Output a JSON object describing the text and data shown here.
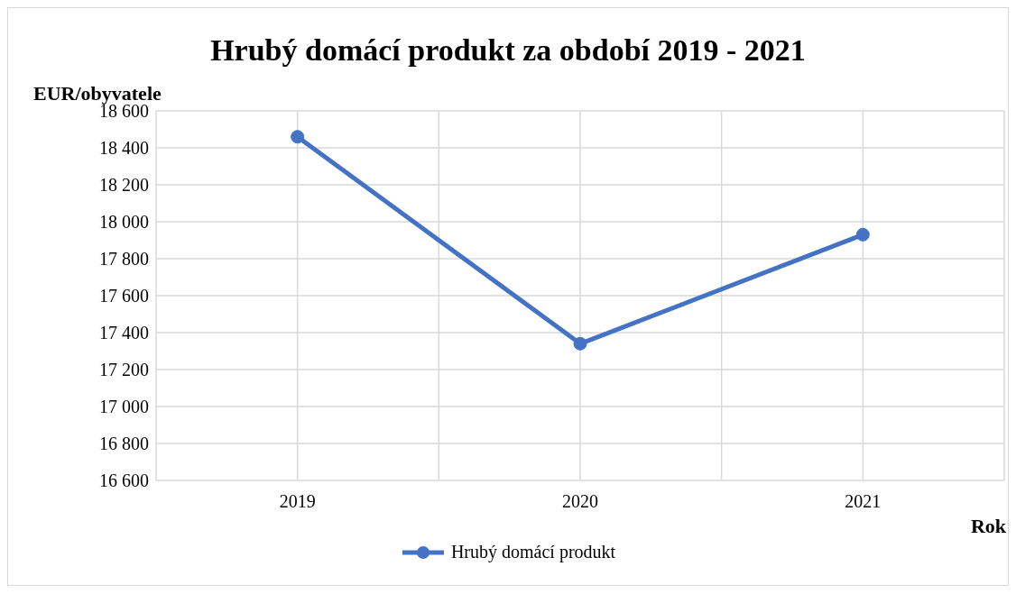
{
  "chart_data": {
    "type": "line",
    "title": "Hrubý domácí produkt za období 2019 - 2021",
    "ylabel": "EUR/obyvatele",
    "xlabel": "Rok",
    "categories": [
      "2019",
      "2020",
      "2021"
    ],
    "series": [
      {
        "name": "Hrubý domácí produkt",
        "color": "#4472c4",
        "values": [
          18460,
          17340,
          17930
        ]
      }
    ],
    "ylim": [
      16600,
      18600
    ],
    "yticks": [
      {
        "value": 16600,
        "label": "16 600"
      },
      {
        "value": 16800,
        "label": "16 800"
      },
      {
        "value": 17000,
        "label": "17 000"
      },
      {
        "value": 17200,
        "label": "17 200"
      },
      {
        "value": 17400,
        "label": "17 400"
      },
      {
        "value": 17600,
        "label": "17 600"
      },
      {
        "value": 17800,
        "label": "17 800"
      },
      {
        "value": 18000,
        "label": "18 000"
      },
      {
        "value": 18200,
        "label": "18 200"
      },
      {
        "value": 18400,
        "label": "18 400"
      },
      {
        "value": 18600,
        "label": "18 600"
      }
    ],
    "grid": true,
    "legend": "bottom",
    "marker": "circle",
    "line_style": "solid"
  }
}
